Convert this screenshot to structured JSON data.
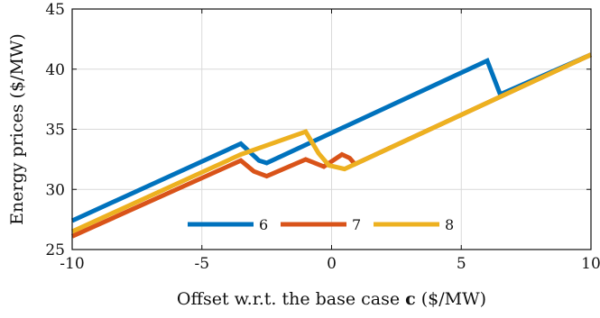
{
  "chart_data": {
    "type": "line",
    "xlabel_prefix": "Offset w.r.t. the base case ",
    "xlabel_bold": "c",
    "xlabel_suffix": " ($/MW)",
    "ylabel": "Energy prices ($/MW)",
    "xlim": [
      -10,
      10
    ],
    "ylim": [
      25,
      45
    ],
    "xticks": [
      -10,
      -5,
      0,
      5,
      10
    ],
    "yticks": [
      25,
      30,
      35,
      40,
      45
    ],
    "grid": true,
    "legend_position": "bottom-center",
    "series": [
      {
        "name": "6",
        "color": "#0072BD",
        "x": [
          -10,
          -3.5,
          -2.8,
          -2.5,
          6.0,
          6.5,
          10
        ],
        "y": [
          27.4,
          33.8,
          32.4,
          32.2,
          40.7,
          37.9,
          41.2
        ]
      },
      {
        "name": "7",
        "color": "#D95319",
        "x": [
          -10,
          -3.5,
          -3.0,
          -2.5,
          -1.0,
          -0.3,
          0.4,
          0.7,
          0.9,
          10
        ],
        "y": [
          26.1,
          32.4,
          31.5,
          31.1,
          32.5,
          31.9,
          32.9,
          32.6,
          32.1,
          41.2
        ]
      },
      {
        "name": "8",
        "color": "#EDB120",
        "x": [
          -10,
          -3.5,
          -1.0,
          -0.5,
          -0.1,
          0.5,
          1.0,
          10
        ],
        "y": [
          26.5,
          32.9,
          34.8,
          33.0,
          32.0,
          31.7,
          32.2,
          41.2
        ]
      }
    ]
  }
}
